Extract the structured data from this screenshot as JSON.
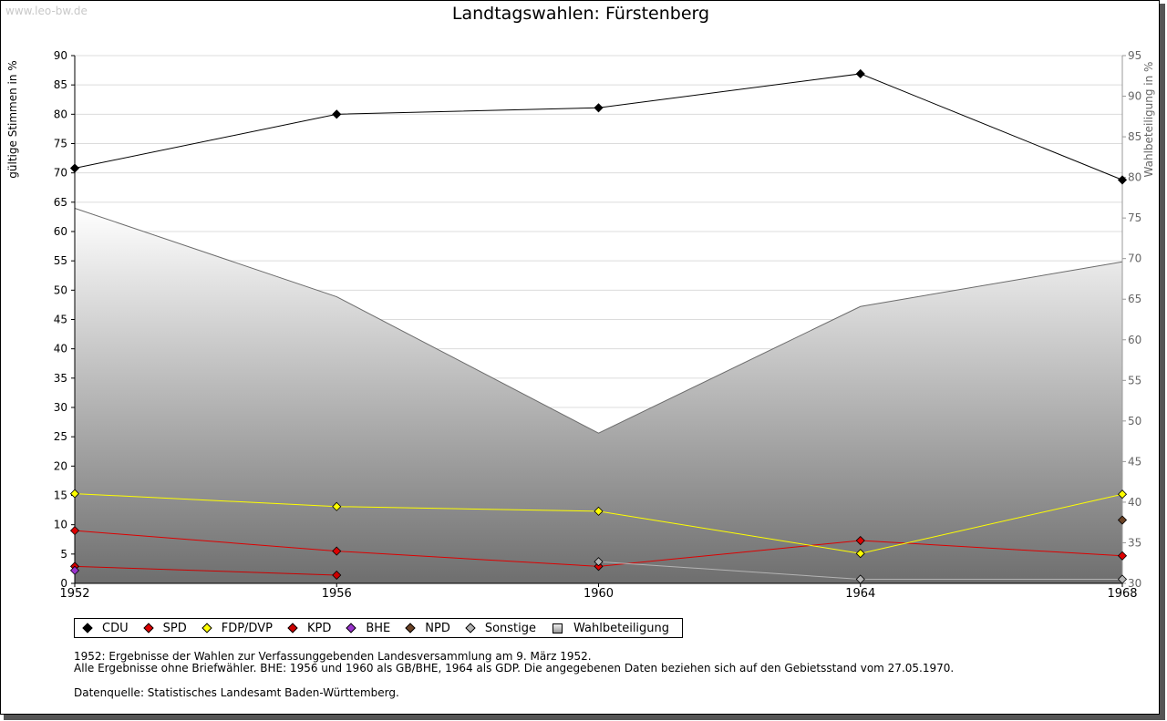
{
  "watermark": "www.leo-bw.de",
  "chart_data": {
    "type": "line",
    "title": "Landtagswahlen: Fürstenberg",
    "xlabel": "",
    "ylabel": "gültige Stimmen in %",
    "y2label": "Wahlbeteiligung in %",
    "categories": [
      "1952",
      "1956",
      "1960",
      "1964",
      "1968"
    ],
    "ylim": [
      0,
      90
    ],
    "y_ticks": [
      0,
      5,
      10,
      15,
      20,
      25,
      30,
      35,
      40,
      45,
      50,
      55,
      60,
      65,
      70,
      75,
      80,
      85,
      90
    ],
    "y2lim": [
      30,
      95
    ],
    "y2_ticks": [
      30,
      35,
      40,
      45,
      50,
      55,
      60,
      65,
      70,
      75,
      80,
      85,
      90,
      95
    ],
    "grid": true,
    "legend_position": "bottom",
    "series": [
      {
        "name": "Wahlbeteiligung",
        "axis": "right",
        "kind": "area",
        "color": "#a6a6a6",
        "values": [
          76.2,
          65.3,
          48.5,
          64.1,
          69.6
        ]
      },
      {
        "name": "CDU",
        "color": "#000000",
        "values": [
          70.8,
          80.0,
          81.1,
          86.9,
          68.8
        ]
      },
      {
        "name": "SPD",
        "color": "#dd0000",
        "values": [
          9.0,
          5.5,
          2.9,
          7.3,
          4.7
        ]
      },
      {
        "name": "FDP/DVP",
        "color": "#ffff00",
        "values": [
          15.3,
          13.1,
          12.3,
          5.1,
          15.2
        ]
      },
      {
        "name": "KPD",
        "color": "#cc0000",
        "values": [
          2.9,
          1.4,
          null,
          null,
          null
        ]
      },
      {
        "name": "BHE",
        "color": "#9933cc",
        "values": [
          2.2,
          null,
          null,
          null,
          null
        ]
      },
      {
        "name": "NPD",
        "color": "#6b4226",
        "values": [
          null,
          null,
          null,
          null,
          10.8
        ]
      },
      {
        "name": "Sonstige",
        "color": "#b3b3b3",
        "values": [
          null,
          null,
          3.7,
          0.7,
          0.7
        ]
      }
    ]
  },
  "legend": [
    {
      "label": "CDU",
      "color": "#000000",
      "shape": "diamond"
    },
    {
      "label": "SPD",
      "color": "#dd0000",
      "shape": "diamond"
    },
    {
      "label": "FDP/DVP",
      "color": "#ffff00",
      "shape": "diamond"
    },
    {
      "label": "KPD",
      "color": "#cc0000",
      "shape": "diamond"
    },
    {
      "label": "BHE",
      "color": "#9933cc",
      "shape": "diamond"
    },
    {
      "label": "NPD",
      "color": "#6b4226",
      "shape": "diamond"
    },
    {
      "label": "Sonstige",
      "color": "#b3b3b3",
      "shape": "diamond"
    },
    {
      "label": "Wahlbeteiligung",
      "color": "#a6a6a6",
      "shape": "square"
    }
  ],
  "notes": {
    "line1": "1952: Ergebnisse der Wahlen zur Verfassunggebenden Landesversammlung am 9. März 1952.",
    "line2": "Alle Ergebnisse ohne Briefwähler. BHE: 1956 und 1960 als GB/BHE, 1964 als GDP. Die angegebenen Daten beziehen sich auf den Gebietsstand vom 27.05.1970.",
    "source": "Datenquelle: Statistisches Landesamt Baden-Württemberg."
  }
}
